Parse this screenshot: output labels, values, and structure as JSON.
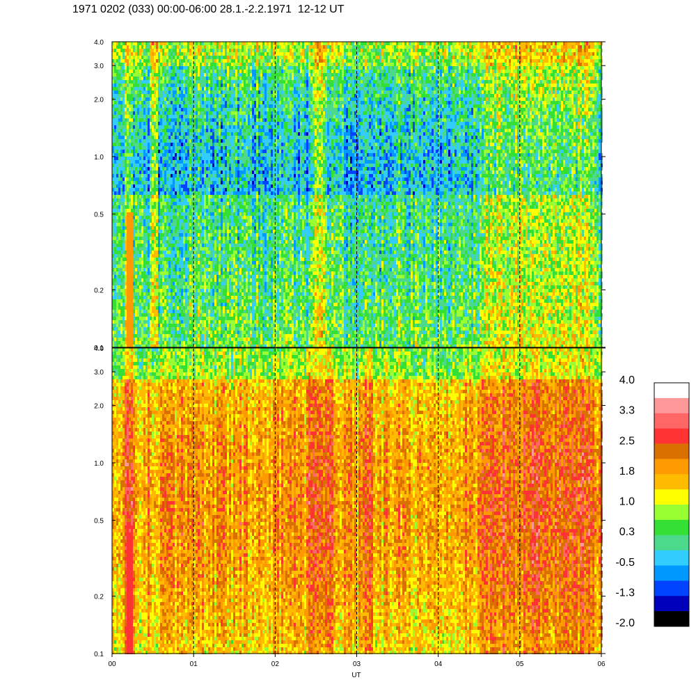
{
  "title": "1971 0202 (033) 00:00-06:00 28.1.-2.2.1971  12-12 UT",
  "chart_data": {
    "type": "heatmap",
    "title": "1971 0202 (033) 00:00-06:00 28.1.-2.2.1971  12-12 UT",
    "xlabel": "UT",
    "ylabel": "",
    "x_ticks": [
      "00",
      "01",
      "02",
      "03",
      "04",
      "05",
      "06"
    ],
    "xlim": [
      0,
      6
    ],
    "x_unit": "hours UT",
    "y_scale": "log",
    "y_ticks": [
      0.1,
      0.2,
      0.5,
      1.0,
      2.0,
      3.0,
      4.0
    ],
    "y_tick_labels": [
      "0.1",
      "0.2",
      "0.5",
      "1.0",
      "2.0",
      "3.0",
      "4.0"
    ],
    "ylim": [
      0.1,
      4.0
    ],
    "vertical_dashed_lines_at": [
      1,
      2,
      3,
      4,
      5
    ],
    "colorbar": {
      "range": [
        -2.0,
        4.0
      ],
      "tick_labels": [
        "4.0",
        "3.3",
        "2.5",
        "1.8",
        "1.0",
        "0.3",
        "-0.5",
        "-1.3",
        "-2.0"
      ],
      "colors_top_to_bottom": [
        "#ffffff",
        "#ff9999",
        "#ff6666",
        "#ff3333",
        "#d97000",
        "#ff9900",
        "#ffbb00",
        "#ffff00",
        "#99ff33",
        "#33e033",
        "#4cd98c",
        "#33ccff",
        "#0099ff",
        "#0044ff",
        "#0000bb",
        "#000000"
      ]
    },
    "panels": [
      {
        "name": "upper",
        "description_levels": "predominantly 0.3 to 1.0 (green/cyan) with blue patches (-0.5 to -1.3) at upper frequencies; yellow/orange bursts near 00:13 and after 04:30",
        "typical_value": 0.5,
        "enhancement_intervals_ut": [
          [
            0.15,
            0.25
          ],
          [
            0.45,
            0.55
          ],
          [
            2.45,
            2.6
          ],
          [
            4.5,
            5.9
          ]
        ]
      },
      {
        "name": "lower",
        "description_levels": "predominantly 1.0 to 2.5 (yellow/orange) with red vertical streaks; strong red band near 00:15 below 1.0",
        "typical_value": 1.4,
        "enhancement_intervals_ut": [
          [
            0.15,
            0.25
          ],
          [
            2.4,
            2.7
          ],
          [
            3.0,
            3.2
          ],
          [
            4.5,
            5.9
          ]
        ]
      }
    ]
  }
}
